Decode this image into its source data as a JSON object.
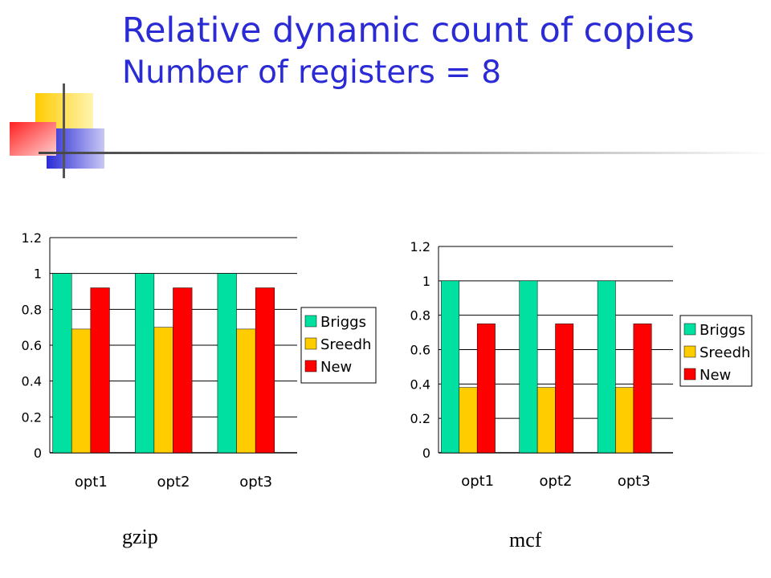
{
  "slide": {
    "title": "Relative dynamic count of copies",
    "subtitle": "Number of registers = 8",
    "captions": [
      "gzip",
      "mcf"
    ]
  },
  "colors": {
    "title": "#2b2bd6",
    "series": [
      "#00e0a0",
      "#ffcc00",
      "#ff0000"
    ],
    "logo": [
      "#ffcc00",
      "#2b2bd6",
      "#ff3b3b"
    ]
  },
  "chart_data": [
    {
      "type": "bar",
      "categories": [
        "opt1",
        "opt2",
        "opt3"
      ],
      "series": [
        {
          "name": "Briggs",
          "values": [
            1,
            1,
            1
          ]
        },
        {
          "name": "Sreedh",
          "values": [
            0.69,
            0.7,
            0.69
          ]
        },
        {
          "name": "New",
          "values": [
            0.92,
            0.92,
            0.92
          ]
        }
      ],
      "ylim": [
        0,
        1.2
      ],
      "yticks": [
        "0",
        "0.2",
        "0.4",
        "0.6",
        "0.8",
        "1",
        "1.2"
      ],
      "grid": true,
      "legend": "right"
    },
    {
      "type": "bar",
      "categories": [
        "opt1",
        "opt2",
        "opt3"
      ],
      "series": [
        {
          "name": "Briggs",
          "values": [
            1,
            1,
            1
          ]
        },
        {
          "name": "Sreedh",
          "values": [
            0.38,
            0.38,
            0.38
          ]
        },
        {
          "name": "New",
          "values": [
            0.75,
            0.75,
            0.75
          ]
        }
      ],
      "ylim": [
        0,
        1.2
      ],
      "yticks": [
        "0",
        "0.2",
        "0.4",
        "0.6",
        "0.8",
        "1",
        "1.2"
      ],
      "grid": true,
      "legend": "right"
    }
  ]
}
